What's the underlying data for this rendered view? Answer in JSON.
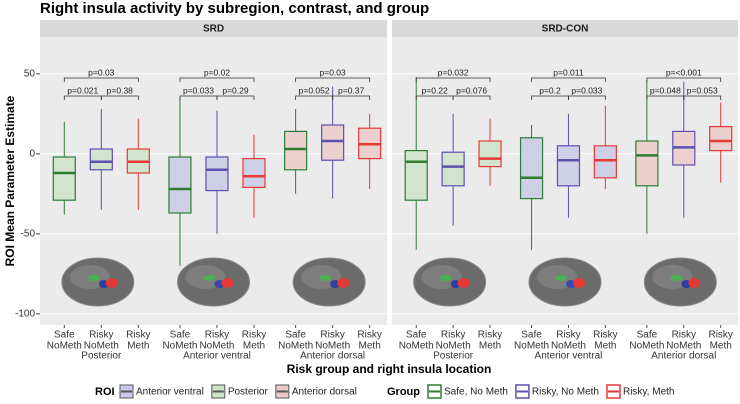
{
  "chart_data": {
    "type": "box",
    "title": "Right insula activity by subregion, contrast, and group",
    "ylabel": "ROI Mean Parameter Estimate",
    "xlabel": "Risk group and right insula location",
    "ylim": [
      -107,
      73
    ],
    "yticks": [
      -100,
      -50,
      0,
      50
    ],
    "grid": true,
    "categories": [
      [
        "Safe",
        "NoMeth"
      ],
      [
        "Risky",
        "NoMeth"
      ],
      [
        "Risky",
        "Meth"
      ]
    ],
    "regions": [
      "Posterior",
      "Anterior ventral",
      "Anterior dorsal"
    ],
    "region_fills": [
      "#cfe3c9",
      "#c9cbe6",
      "#eccaca"
    ],
    "roi_legend_title": "ROI",
    "roi_legend": [
      {
        "name": "Anterior ventral",
        "color": "#c9cbe6"
      },
      {
        "name": "Posterior",
        "color": "#cfe3c9"
      },
      {
        "name": "Anterior dorsal",
        "color": "#eccaca"
      }
    ],
    "group_legend_title": "Group",
    "groups": [
      {
        "name": "Safe, No Meth",
        "color": "#2e7d32"
      },
      {
        "name": "Risky, No Meth",
        "color": "#5e4fb0"
      },
      {
        "name": "Risky, Meth",
        "color": "#e53935"
      }
    ],
    "facets": [
      {
        "name": "SRD",
        "boxes": [
          [
            {
              "min": -38,
              "q1": -29,
              "median": -12,
              "q3": -2,
              "max": 20
            },
            {
              "min": -35,
              "q1": -10,
              "median": -5,
              "q3": 3,
              "max": 28
            },
            {
              "min": -35,
              "q1": -12,
              "median": -5,
              "q3": 3,
              "max": 22
            }
          ],
          [
            {
              "min": -70,
              "q1": -37,
              "median": -22,
              "q3": -2,
              "max": 35
            },
            {
              "min": -50,
              "q1": -23,
              "median": -10,
              "q3": -2,
              "max": 27
            },
            {
              "min": -40,
              "q1": -21,
              "median": -14,
              "q3": -3,
              "max": 12
            }
          ],
          [
            {
              "min": -25,
              "q1": -10,
              "median": 3,
              "q3": 14,
              "max": 28
            },
            {
              "min": -28,
              "q1": -4,
              "median": 8,
              "q3": 18,
              "max": 42
            },
            {
              "min": -22,
              "q1": -3,
              "median": 6,
              "q3": 16,
              "max": 25
            }
          ]
        ],
        "pvalues": [
          [
            "p=0.021",
            "p=0.38",
            "p=0.03"
          ],
          [
            "p=0.033",
            "p=0.29",
            "p=0.02"
          ],
          [
            "p=0.052",
            "p=0.37",
            "p=0.03"
          ]
        ]
      },
      {
        "name": "SRD-CON",
        "boxes": [
          [
            {
              "min": -60,
              "q1": -29,
              "median": -5,
              "q3": 2,
              "max": 48
            },
            {
              "min": -45,
              "q1": -20,
              "median": -8,
              "q3": 1,
              "max": 25
            },
            {
              "min": -20,
              "q1": -8,
              "median": -3,
              "q3": 8,
              "max": 22
            }
          ],
          [
            {
              "min": -60,
              "q1": -28,
              "median": -15,
              "q3": 10,
              "max": 18
            },
            {
              "min": -40,
              "q1": -20,
              "median": -4,
              "q3": 5,
              "max": 25
            },
            {
              "min": -22,
              "q1": -15,
              "median": -4,
              "q3": 5,
              "max": 30
            }
          ],
          [
            {
              "min": -50,
              "q1": -20,
              "median": -1,
              "q3": 8,
              "max": 46
            },
            {
              "min": -40,
              "q1": -7,
              "median": 4,
              "q3": 14,
              "max": 45
            },
            {
              "min": -18,
              "q1": 2,
              "median": 8,
              "q3": 17,
              "max": 32
            }
          ]
        ],
        "pvalues": [
          [
            "p=0.22",
            "p=0.076",
            "p=0.032"
          ],
          [
            "p=0.2",
            "p=0.033",
            "p=0.011"
          ],
          [
            "p=0.048",
            "p=0.053",
            "p=<0.001"
          ]
        ]
      }
    ]
  }
}
